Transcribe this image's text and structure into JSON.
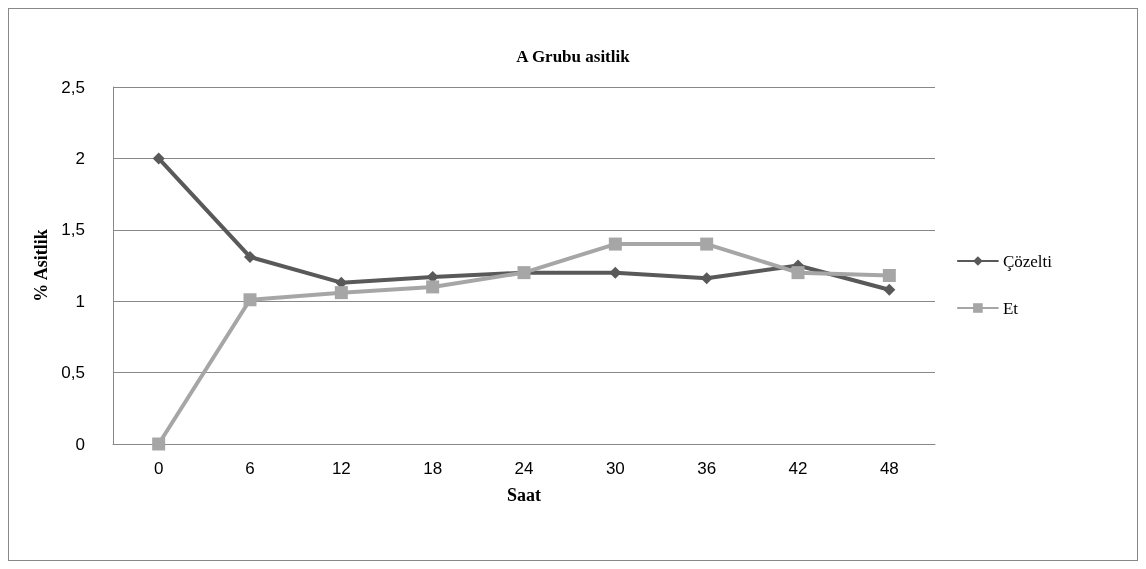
{
  "chart_data": {
    "type": "line",
    "title": "A Grubu asitlik",
    "xlabel": "Saat",
    "ylabel": "% Asitlik",
    "categories": [
      "0",
      "6",
      "12",
      "18",
      "24",
      "30",
      "36",
      "42",
      "48"
    ],
    "series": [
      {
        "name": "Çözelti",
        "color": "#595959",
        "marker": "diamond",
        "values": [
          2.0,
          1.31,
          1.13,
          1.17,
          1.2,
          1.2,
          1.16,
          1.25,
          1.08
        ]
      },
      {
        "name": "Et",
        "color": "#a6a6a6",
        "marker": "square",
        "values": [
          0,
          1.01,
          1.06,
          1.1,
          1.2,
          1.4,
          1.4,
          1.2,
          1.18
        ]
      }
    ],
    "ylim": [
      0,
      2.5
    ],
    "yticks": [
      0,
      {
        "value": 0.5,
        "label": "0,5"
      },
      1,
      {
        "value": 1.5,
        "label": "1,5"
      },
      2,
      {
        "value": 2.5,
        "label": "2,5"
      }
    ],
    "grid": "y",
    "legend": "right",
    "line_style": "solid"
  }
}
